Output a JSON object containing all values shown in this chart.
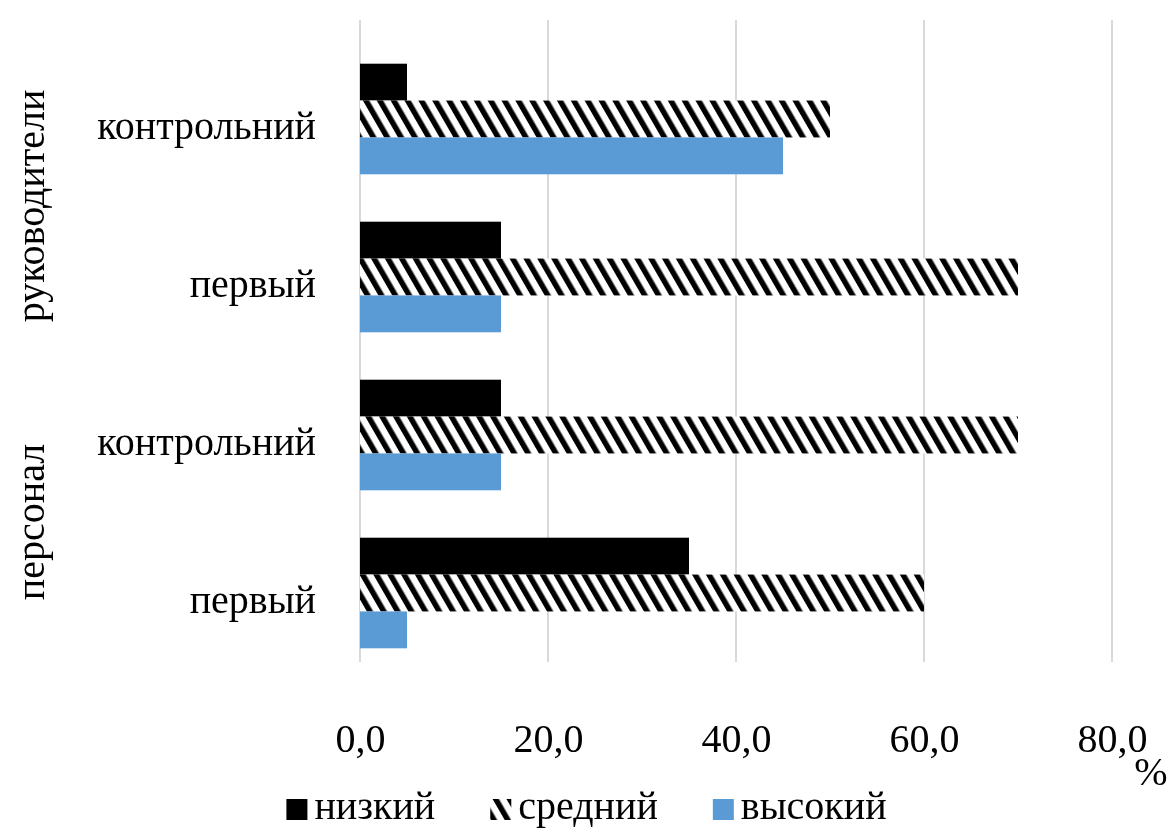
{
  "chart_data": {
    "type": "bar",
    "orientation": "horizontal",
    "categories": [
      "контрольний",
      "первый",
      "контрольний",
      "первый"
    ],
    "series": [
      {
        "name": "низкий",
        "color": "#000000",
        "values": [
          5,
          15,
          15,
          35
        ]
      },
      {
        "name": "средний",
        "color": "#000000",
        "values": [
          50,
          70,
          70,
          60
        ]
      },
      {
        "name": "высокий",
        "color": "#5b9bd5",
        "values": [
          45,
          15,
          15,
          5
        ]
      }
    ],
    "xlabel": "%",
    "xlim": [
      0,
      80
    ],
    "xticks": [
      {
        "value": 0,
        "label": "0,0"
      },
      {
        "value": 20,
        "label": "20,0"
      },
      {
        "value": 40,
        "label": "40,0"
      },
      {
        "value": 60,
        "label": "60,0"
      },
      {
        "value": 80,
        "label": "80,0"
      }
    ],
    "annotations": [
      "руководители",
      "персонал"
    ],
    "grid": "x",
    "legend": "bottom"
  }
}
